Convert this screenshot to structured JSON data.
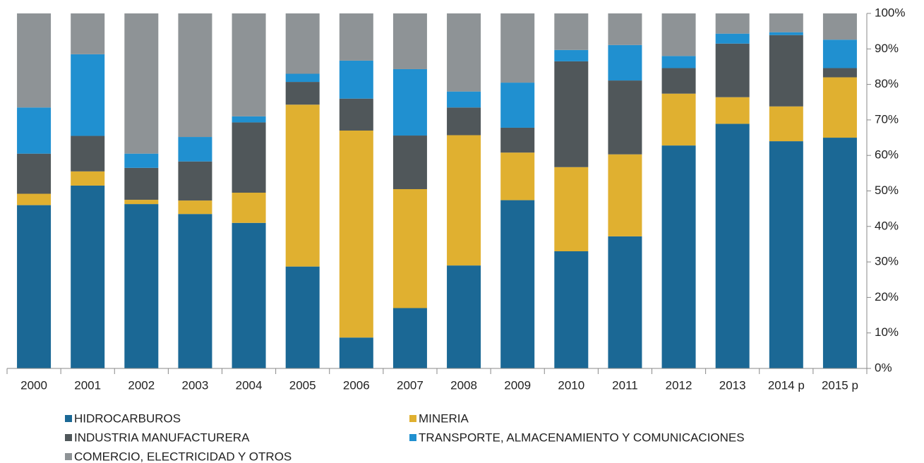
{
  "chart_data": {
    "type": "stacked_bar_100",
    "categories": [
      "2000",
      "2001",
      "2002",
      "2003",
      "2004",
      "2005",
      "2006",
      "2007",
      "2008",
      "2009",
      "2010",
      "2011",
      "2012",
      "2013",
      "2014 p",
      "2015 p"
    ],
    "series": [
      {
        "name": "HIDROCARBUROS",
        "color": "#1b6895",
        "values": [
          46,
          51.5,
          46.3,
          43.5,
          41,
          28.7,
          8.7,
          17,
          29,
          47.4,
          33,
          37.2,
          62.8,
          68.9,
          64,
          65
        ]
      },
      {
        "name": "MINERIA",
        "color": "#e0b030",
        "values": [
          3.2,
          4,
          1.2,
          3.8,
          8.5,
          45.6,
          58.3,
          33.5,
          36.7,
          13.4,
          23.7,
          23.1,
          14.6,
          7.5,
          9.8,
          17
        ]
      },
      {
        "name": "INDUSTRIA MANUFACTURERA",
        "color": "#50575a",
        "values": [
          11.3,
          10,
          9,
          11,
          19.8,
          6.4,
          9,
          15.1,
          7.8,
          7,
          29.8,
          20.8,
          7.2,
          15.1,
          20.1,
          2.6
        ]
      },
      {
        "name": "TRANSPORTE, ALMACENAMIENTO Y COMUNICACIONES",
        "color": "#2090d0",
        "values": [
          13,
          23,
          4,
          6.9,
          1.7,
          2.3,
          10.7,
          18.7,
          4.5,
          12.7,
          3.2,
          10,
          3.4,
          2.8,
          0.8,
          8
        ]
      },
      {
        "name": "COMERCIO, ELECTRICIDAD Y OTROS",
        "color": "#8e9396",
        "values": [
          26.5,
          11.5,
          39.5,
          34.8,
          29,
          17,
          13.3,
          15.7,
          22,
          19.5,
          10.3,
          8.9,
          12,
          5.7,
          5.3,
          7.4
        ]
      }
    ],
    "ylim": [
      0,
      100
    ],
    "yticks": [
      {
        "value": 0,
        "label": "0%"
      },
      {
        "value": 10,
        "label": "10%"
      },
      {
        "value": 20,
        "label": "20%"
      },
      {
        "value": 30,
        "label": "30%"
      },
      {
        "value": 40,
        "label": "40%"
      },
      {
        "value": 50,
        "label": "50%"
      },
      {
        "value": 60,
        "label": "60%"
      },
      {
        "value": 70,
        "label": "70%"
      },
      {
        "value": 80,
        "label": "80%"
      },
      {
        "value": 90,
        "label": "90%"
      },
      {
        "value": 100,
        "label": "100%"
      }
    ],
    "legend": "bottom"
  }
}
